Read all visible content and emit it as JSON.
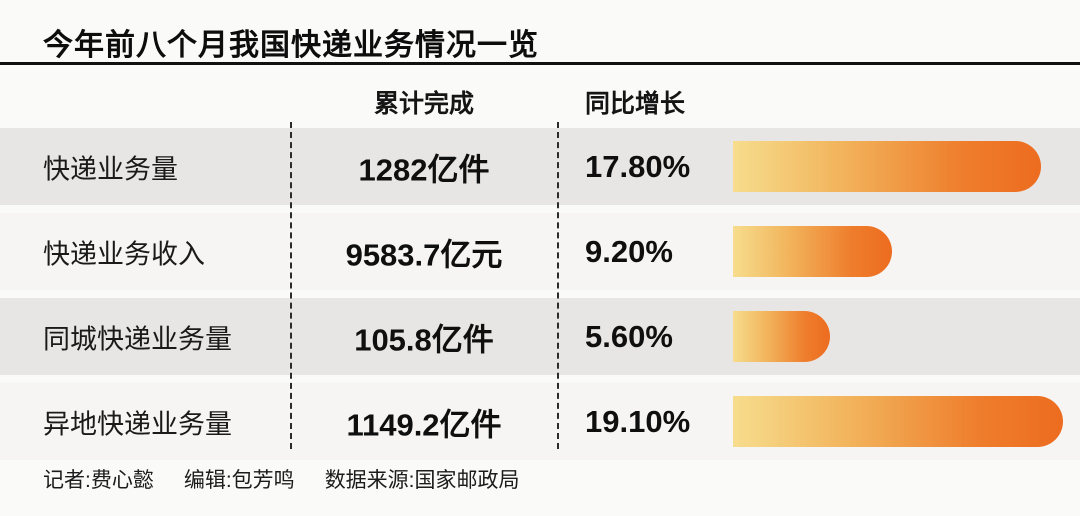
{
  "header": {
    "title": "今年前八个月我国快递业务情况一览"
  },
  "table": {
    "col_headers": {
      "completed": "累计完成",
      "growth": "同比增长"
    },
    "rows": [
      {
        "label": "快递业务量",
        "completed": "1282亿件",
        "growth": "17.80%"
      },
      {
        "label": "快递业务收入",
        "completed": "9583.7亿元",
        "growth": "9.20%"
      },
      {
        "label": "同城快递业务量",
        "completed": "105.8亿件",
        "growth": "5.60%"
      },
      {
        "label": "异地快递业务量",
        "completed": "1149.2亿件",
        "growth": "19.10%"
      }
    ]
  },
  "chart_data": {
    "type": "bar",
    "title": "今年前八个月我国快递业务情况一览",
    "categories": [
      "快递业务量",
      "快递业务收入",
      "同城快递业务量",
      "异地快递业务量"
    ],
    "values": [
      17.8,
      9.2,
      5.6,
      19.1
    ],
    "value_labels": [
      "17.80%",
      "9.20%",
      "5.60%",
      "19.10%"
    ],
    "completed_labels": [
      "1282亿件",
      "9583.7亿元",
      "105.8亿件",
      "1149.2亿件"
    ],
    "xlabel": "同比增长",
    "ylabel": "",
    "orientation": "horizontal",
    "grid": false,
    "legend": false,
    "bar_gradient": [
      "#f6dd8d",
      "#ed6c1f"
    ],
    "row_shade_colors": [
      "#e8e6e4",
      "#f6f5f3"
    ]
  },
  "footer": {
    "reporter": "记者:费心懿",
    "editor": "编辑:包芳鸣",
    "source": "数据来源:国家邮政局"
  }
}
